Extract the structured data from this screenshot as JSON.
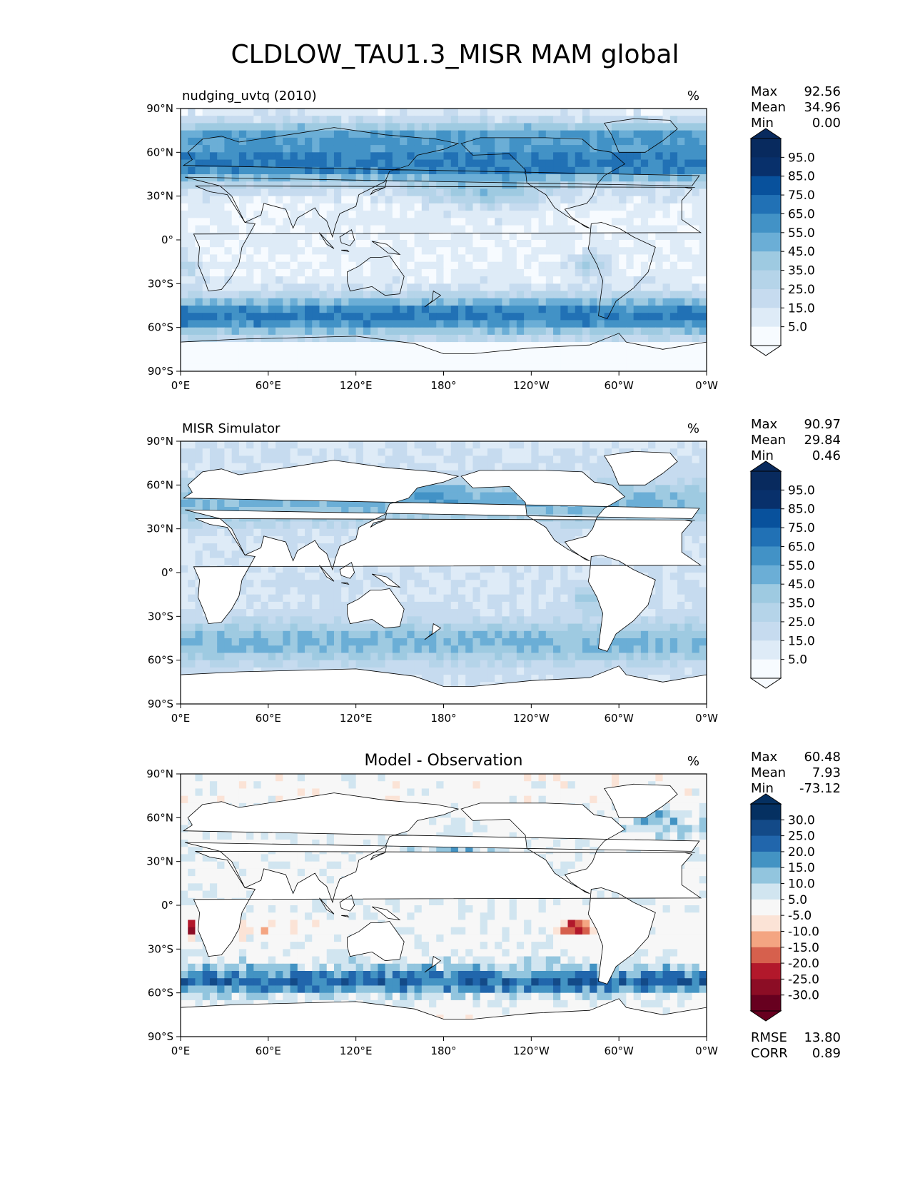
{
  "title": "CLDLOW_TAU1.3_MISR MAM global",
  "colors": {
    "blues": [
      "#f7fbff",
      "#deebf7",
      "#c6dbef",
      "#b5d4e9",
      "#9ecae1",
      "#6baed6",
      "#4292c6",
      "#2171b5",
      "#08519c",
      "#08306b",
      "#082a5e"
    ],
    "diff": [
      "#67001f",
      "#8c0d25",
      "#b2182b",
      "#d6604d",
      "#f4a582",
      "#fbe3d6",
      "#f7f7f7",
      "#d1e5f0",
      "#92c5de",
      "#4393c3",
      "#2166ac",
      "#134a88",
      "#053061"
    ],
    "land_outline": "#000000"
  },
  "chart_data": [
    {
      "type": "heatmap",
      "panel": "test",
      "subtitle": "nudging_uvtq (2010)",
      "units": "%",
      "stats": [
        {
          "label": "Max",
          "value": "92.56"
        },
        {
          "label": "Mean",
          "value": "34.96"
        },
        {
          "label": "Min",
          "value": "0.00"
        }
      ],
      "colorbar": {
        "ticks": [
          "95.0",
          "85.0",
          "75.0",
          "65.0",
          "55.0",
          "45.0",
          "35.0",
          "25.0",
          "15.0",
          "5.0"
        ],
        "scale": "blues"
      },
      "xticks": [
        "0°E",
        "60°E",
        "120°E",
        "180°",
        "120°W",
        "60°W",
        "0°W"
      ],
      "yticks": [
        "90°N",
        "60°N",
        "30°N",
        "0°",
        "30°S",
        "60°S",
        "90°S"
      ],
      "xlim": [
        0,
        360
      ],
      "ylim": [
        -90,
        90
      ]
    },
    {
      "type": "heatmap",
      "panel": "reference",
      "subtitle": "MISR Simulator",
      "units": "%",
      "stats": [
        {
          "label": "Max",
          "value": "90.97"
        },
        {
          "label": "Mean",
          "value": "29.84"
        },
        {
          "label": "Min",
          "value": "0.46"
        }
      ],
      "colorbar": {
        "ticks": [
          "95.0",
          "85.0",
          "75.0",
          "65.0",
          "55.0",
          "45.0",
          "35.0",
          "25.0",
          "15.0",
          "5.0"
        ],
        "scale": "blues"
      },
      "xticks": [
        "0°E",
        "60°E",
        "120°E",
        "180°",
        "120°W",
        "60°W",
        "0°W"
      ],
      "yticks": [
        "90°N",
        "60°N",
        "30°N",
        "0°",
        "30°S",
        "60°S",
        "90°S"
      ],
      "xlim": [
        0,
        360
      ],
      "ylim": [
        -90,
        90
      ]
    },
    {
      "type": "heatmap",
      "panel": "difference",
      "subtitle": "Model - Observation",
      "units": "%",
      "stats": [
        {
          "label": "Max",
          "value": "60.48"
        },
        {
          "label": "Mean",
          "value": "7.93"
        },
        {
          "label": "Min",
          "value": "-73.12"
        }
      ],
      "extra_stats": [
        {
          "label": "RMSE",
          "value": "13.80"
        },
        {
          "label": "CORR",
          "value": "0.89"
        }
      ],
      "colorbar": {
        "ticks": [
          "30.0",
          "25.0",
          "20.0",
          "15.0",
          "10.0",
          "5.0",
          "-5.0",
          "-10.0",
          "-15.0",
          "-20.0",
          "-25.0",
          "-30.0"
        ],
        "scale": "diff"
      },
      "xticks": [
        "0°E",
        "60°E",
        "120°E",
        "180°",
        "120°W",
        "60°W",
        "0°W"
      ],
      "yticks": [
        "90°N",
        "60°N",
        "30°N",
        "0°",
        "30°S",
        "60°S",
        "90°S"
      ],
      "xlim": [
        0,
        360
      ],
      "ylim": [
        -90,
        90
      ]
    }
  ]
}
